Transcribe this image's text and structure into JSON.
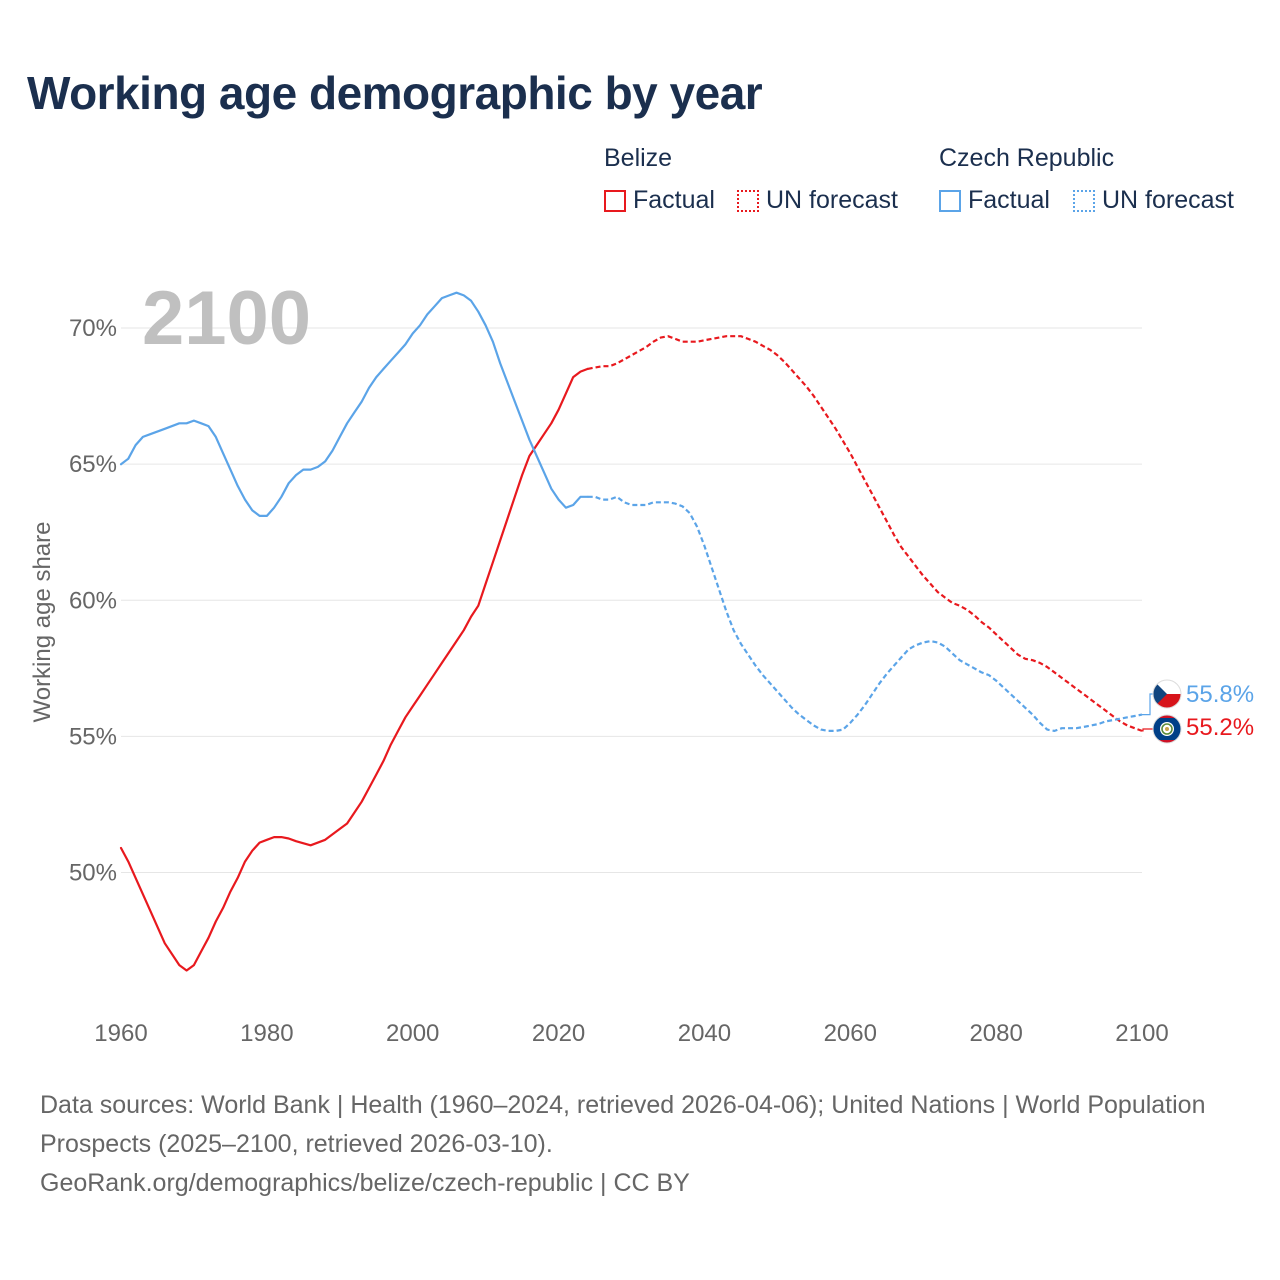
{
  "title": "Working age demographic by year",
  "legend": {
    "groups": [
      {
        "name": "Belize",
        "factual_label": "Factual",
        "forecast_label": "UN forecast",
        "color": "#e8191e"
      },
      {
        "name": "Czech Republic",
        "factual_label": "Factual",
        "forecast_label": "UN forecast",
        "color": "#5ba4e8"
      }
    ]
  },
  "year_watermark": "2100",
  "chart_data": {
    "type": "line",
    "title": "Working age demographic by year",
    "xlabel": "",
    "ylabel": "Working age share",
    "xlim": [
      1960,
      2100
    ],
    "ylim": [
      45.5,
      72.5
    ],
    "x_ticks": [
      1960,
      1980,
      2000,
      2020,
      2040,
      2060,
      2080,
      2100
    ],
    "x_tick_labels": [
      "1960",
      "1980",
      "2000",
      "2020",
      "2040",
      "2060",
      "2080",
      "2100"
    ],
    "y_ticks": [
      50,
      55,
      60,
      65,
      70
    ],
    "y_tick_labels": [
      "50%",
      "55%",
      "60%",
      "65%",
      "70%"
    ],
    "grid": true,
    "legend_position": "top-right",
    "series": [
      {
        "name": "Belize",
        "key": "belize",
        "color": "#e8191e",
        "factual_x": [
          1960,
          1961,
          1962,
          1964,
          1966,
          1968,
          1969,
          1970,
          1971,
          1972,
          1973,
          1974,
          1975,
          1976,
          1977,
          1978,
          1979,
          1980,
          1981,
          1982,
          1983,
          1984,
          1986,
          1988,
          1990,
          1991,
          1992,
          1993,
          1994,
          1995,
          1996,
          1997,
          1998,
          1999,
          2000,
          2001,
          2002,
          2003,
          2004,
          2005,
          2006,
          2007,
          2008,
          2009,
          2010,
          2011,
          2012,
          2013,
          2014,
          2015,
          2016,
          2017,
          2018,
          2019,
          2020,
          2021,
          2022,
          2023,
          2024
        ],
        "factual_y": [
          50.9,
          50.4,
          49.8,
          48.6,
          47.4,
          46.6,
          46.4,
          46.6,
          47.1,
          47.6,
          48.2,
          48.7,
          49.3,
          49.8,
          50.4,
          50.8,
          51.1,
          51.2,
          51.3,
          51.3,
          51.25,
          51.15,
          51.0,
          51.2,
          51.6,
          51.8,
          52.2,
          52.6,
          53.1,
          53.6,
          54.1,
          54.7,
          55.2,
          55.7,
          56.1,
          56.5,
          56.9,
          57.3,
          57.7,
          58.1,
          58.5,
          58.9,
          59.4,
          59.8,
          60.6,
          61.4,
          62.2,
          63.0,
          63.8,
          64.6,
          65.3,
          65.7,
          66.1,
          66.5,
          67.0,
          67.6,
          68.2,
          68.4,
          68.5
        ],
        "forecast_x": [
          2024,
          2025,
          2026,
          2027,
          2028,
          2029,
          2030,
          2031,
          2032,
          2033,
          2034,
          2035,
          2036,
          2037,
          2038,
          2039,
          2040,
          2041,
          2042,
          2043,
          2044,
          2045,
          2046,
          2047,
          2048,
          2049,
          2050,
          2051,
          2052,
          2053,
          2054,
          2055,
          2056,
          2057,
          2058,
          2059,
          2060,
          2061,
          2062,
          2063,
          2064,
          2065,
          2066,
          2067,
          2068,
          2069,
          2070,
          2071,
          2072,
          2073,
          2074,
          2075,
          2076,
          2077,
          2078,
          2079,
          2080,
          2081,
          2082,
          2083,
          2084,
          2085,
          2086,
          2087,
          2088,
          2089,
          2090,
          2091,
          2092,
          2093,
          2094,
          2095,
          2096,
          2097,
          2098,
          2099,
          2100
        ],
        "forecast_y": [
          68.5,
          68.55,
          68.6,
          68.6,
          68.7,
          68.85,
          69.0,
          69.15,
          69.3,
          69.5,
          69.65,
          69.7,
          69.6,
          69.5,
          69.5,
          69.5,
          69.55,
          69.6,
          69.65,
          69.7,
          69.7,
          69.7,
          69.6,
          69.5,
          69.35,
          69.2,
          69.0,
          68.75,
          68.45,
          68.15,
          67.85,
          67.5,
          67.1,
          66.7,
          66.3,
          65.85,
          65.4,
          64.9,
          64.4,
          63.9,
          63.4,
          62.9,
          62.4,
          61.95,
          61.6,
          61.25,
          60.9,
          60.6,
          60.3,
          60.1,
          59.9,
          59.8,
          59.65,
          59.45,
          59.2,
          59.0,
          58.75,
          58.5,
          58.25,
          58.0,
          57.85,
          57.8,
          57.7,
          57.55,
          57.35,
          57.15,
          56.95,
          56.75,
          56.55,
          56.35,
          56.15,
          55.95,
          55.75,
          55.55,
          55.4,
          55.3,
          55.2
        ]
      },
      {
        "name": "Czech Republic",
        "key": "czech",
        "color": "#5ba4e8",
        "factual_x": [
          1960,
          1961,
          1962,
          1963,
          1964,
          1966,
          1968,
          1969,
          1970,
          1971,
          1972,
          1973,
          1974,
          1975,
          1976,
          1977,
          1978,
          1979,
          1980,
          1981,
          1982,
          1983,
          1984,
          1985,
          1986,
          1987,
          1988,
          1989,
          1990,
          1991,
          1992,
          1993,
          1994,
          1995,
          1996,
          1997,
          1998,
          1999,
          2000,
          2001,
          2002,
          2003,
          2004,
          2005,
          2006,
          2007,
          2008,
          2009,
          2010,
          2011,
          2012,
          2013,
          2014,
          2015,
          2016,
          2017,
          2018,
          2019,
          2020,
          2021,
          2022,
          2023,
          2024
        ],
        "factual_y": [
          65.0,
          65.2,
          65.7,
          66.0,
          66.1,
          66.3,
          66.5,
          66.5,
          66.6,
          66.5,
          66.4,
          66.0,
          65.4,
          64.8,
          64.2,
          63.7,
          63.3,
          63.1,
          63.1,
          63.4,
          63.8,
          64.3,
          64.6,
          64.8,
          64.8,
          64.9,
          65.1,
          65.5,
          66.0,
          66.5,
          66.9,
          67.3,
          67.8,
          68.2,
          68.5,
          68.8,
          69.1,
          69.4,
          69.8,
          70.1,
          70.5,
          70.8,
          71.1,
          71.2,
          71.3,
          71.2,
          71.0,
          70.6,
          70.1,
          69.5,
          68.7,
          68.0,
          67.3,
          66.6,
          65.9,
          65.3,
          64.7,
          64.1,
          63.7,
          63.4,
          63.5,
          63.8,
          63.8
        ],
        "forecast_x": [
          2024,
          2025,
          2026,
          2027,
          2028,
          2029,
          2030,
          2031,
          2032,
          2033,
          2034,
          2035,
          2036,
          2037,
          2038,
          2039,
          2040,
          2041,
          2042,
          2043,
          2044,
          2045,
          2046,
          2047,
          2048,
          2049,
          2050,
          2051,
          2052,
          2053,
          2054,
          2055,
          2056,
          2057,
          2058,
          2059,
          2060,
          2061,
          2062,
          2063,
          2064,
          2065,
          2066,
          2067,
          2068,
          2069,
          2070,
          2071,
          2072,
          2073,
          2074,
          2075,
          2076,
          2077,
          2078,
          2079,
          2080,
          2081,
          2082,
          2083,
          2084,
          2085,
          2086,
          2087,
          2088,
          2089,
          2090,
          2091,
          2092,
          2093,
          2094,
          2095,
          2096,
          2097,
          2098,
          2099,
          2100
        ],
        "forecast_y": [
          63.8,
          63.8,
          63.7,
          63.7,
          63.8,
          63.6,
          63.5,
          63.5,
          63.5,
          63.6,
          63.6,
          63.6,
          63.55,
          63.45,
          63.2,
          62.7,
          62.0,
          61.2,
          60.4,
          59.6,
          58.9,
          58.4,
          58.0,
          57.6,
          57.25,
          56.95,
          56.65,
          56.35,
          56.05,
          55.8,
          55.6,
          55.4,
          55.25,
          55.2,
          55.2,
          55.25,
          55.5,
          55.8,
          56.15,
          56.55,
          56.95,
          57.3,
          57.6,
          57.9,
          58.2,
          58.35,
          58.45,
          58.5,
          58.45,
          58.3,
          58.05,
          57.8,
          57.65,
          57.5,
          57.35,
          57.25,
          57.05,
          56.8,
          56.55,
          56.3,
          56.05,
          55.8,
          55.5,
          55.25,
          55.2,
          55.3,
          55.3,
          55.3,
          55.35,
          55.4,
          55.45,
          55.55,
          55.6,
          55.65,
          55.7,
          55.75,
          55.8
        ]
      }
    ],
    "end_labels": [
      {
        "series": "Czech Republic",
        "text": "55.8%"
      },
      {
        "series": "Belize",
        "text": "55.2%"
      }
    ]
  },
  "sources": {
    "line1": "Data sources: World Bank | Health (1960–2024, retrieved 2026-04-06); United Nations | World Population Prospects (2025–2100, retrieved 2026-03-10).",
    "line2": "GeoRank.org/demographics/belize/czech-republic | CC BY"
  }
}
